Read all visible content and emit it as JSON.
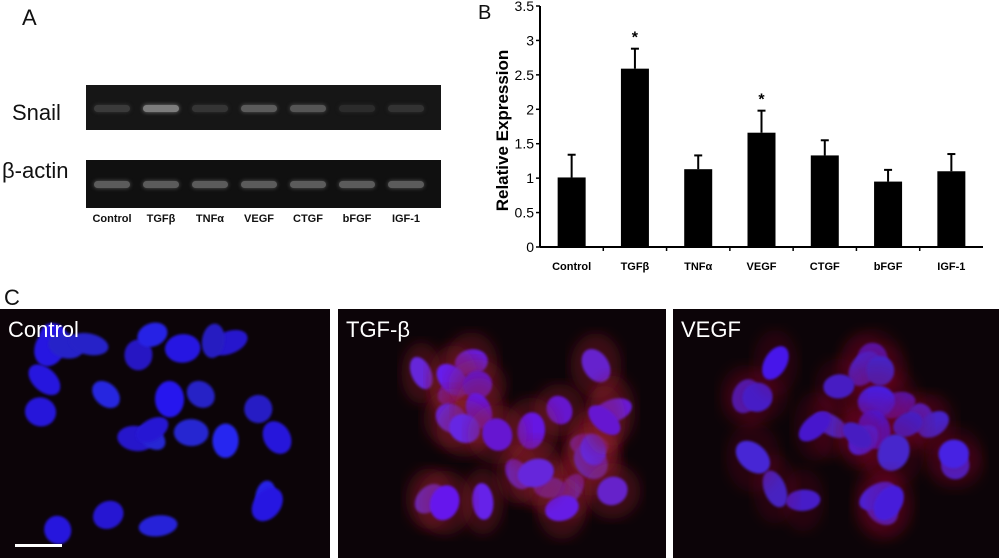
{
  "panel_labels": {
    "a": "A",
    "b": "B",
    "c": "C"
  },
  "gel": {
    "rows": [
      {
        "label": "Snail",
        "intensities": [
          0.25,
          0.85,
          0.2,
          0.55,
          0.5,
          0.12,
          0.18
        ]
      },
      {
        "label": "β-actin",
        "intensities": [
          0.55,
          0.55,
          0.55,
          0.55,
          0.55,
          0.55,
          0.55
        ]
      }
    ],
    "lanes": [
      "Control",
      "TGFβ",
      "TNFα",
      "VEGF",
      "CTGF",
      "bFGF",
      "IGF-1"
    ]
  },
  "chart_data": {
    "type": "bar",
    "categories": [
      "Control",
      "TGFβ",
      "TNFα",
      "VEGF",
      "CTGF",
      "bFGF",
      "IGF-1"
    ],
    "values": [
      1.01,
      2.59,
      1.13,
      1.66,
      1.33,
      0.95,
      1.1
    ],
    "error_upper": [
      1.34,
      2.88,
      1.33,
      1.98,
      1.55,
      1.12,
      1.35
    ],
    "significance": [
      "",
      "*",
      "",
      "*",
      "",
      "",
      ""
    ],
    "ylabel": "Relative Expression",
    "xlabel": "",
    "ylim": [
      0,
      3.5
    ],
    "yticks": [
      "0",
      "0.5",
      "1",
      "1.5",
      "2",
      "2.5",
      "3",
      "3.5"
    ],
    "grid": false,
    "bar_color": "#000000"
  },
  "micrographs": [
    {
      "label": "Control",
      "red_level": 0.1
    },
    {
      "label": "TGF-β",
      "red_level": 0.8
    },
    {
      "label": "VEGF",
      "red_level": 0.45
    }
  ]
}
